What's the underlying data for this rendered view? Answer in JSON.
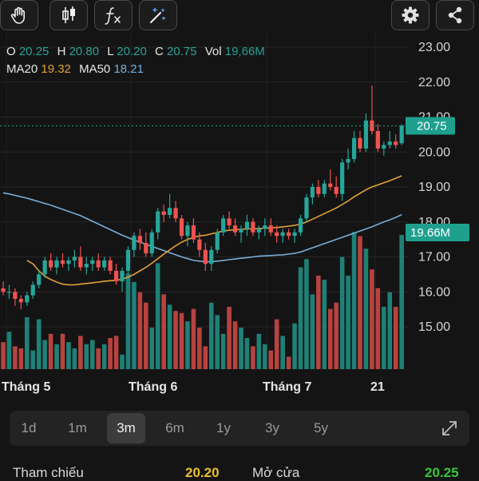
{
  "toolbar": {
    "left_icons": [
      "hand-icon",
      "candlestick-icon",
      "function-icon",
      "magic-wand-icon"
    ],
    "right_icons": [
      "gear-icon",
      "share-icon"
    ]
  },
  "ohlc": {
    "o_label": "O",
    "o": "20.25",
    "h_label": "H",
    "h": "20.80",
    "l_label": "L",
    "l": "20.20",
    "c_label": "C",
    "c": "20.75",
    "vol_label": "Vol",
    "vol": "19,66M",
    "ma20_label": "MA20",
    "ma20": "19.32",
    "ma50_label": "MA50",
    "ma50": "18.21"
  },
  "chart_data": {
    "type": "candlestick",
    "price_axis_ticks": [
      "23.00",
      "22.00",
      "21.00",
      "20.00",
      "19.00",
      "18.00",
      "17.00",
      "16.00",
      "15.00"
    ],
    "x_labels": [
      "Tháng 5",
      "Tháng 6",
      "Tháng 7",
      "21"
    ],
    "last_price_label": "20.75",
    "last_volume_label": "19.66M",
    "colors": {
      "up": "#26a69a",
      "down": "#ef5350",
      "ma20": "#e2a23a",
      "ma50": "#79aed8",
      "price_tag": "#1fa08f"
    },
    "candles": [
      [
        16.1,
        16.3,
        15.9,
        16.0
      ],
      [
        16.0,
        16.2,
        15.8,
        16.0
      ],
      [
        16.0,
        16.1,
        15.6,
        15.8
      ],
      [
        15.8,
        15.9,
        15.5,
        15.7
      ],
      [
        15.7,
        16.0,
        15.6,
        15.9
      ],
      [
        15.9,
        16.3,
        15.8,
        16.2
      ],
      [
        16.2,
        16.6,
        16.1,
        16.5
      ],
      [
        16.5,
        17.0,
        16.4,
        16.9
      ],
      [
        16.9,
        17.1,
        16.6,
        16.7
      ],
      [
        16.7,
        17.0,
        16.5,
        16.9
      ],
      [
        16.9,
        17.1,
        16.7,
        16.8
      ],
      [
        16.8,
        17.0,
        16.6,
        16.9
      ],
      [
        16.9,
        17.2,
        16.7,
        17.0
      ],
      [
        17.0,
        17.3,
        16.6,
        16.7
      ],
      [
        16.7,
        17.0,
        16.5,
        16.8
      ],
      [
        16.8,
        17.0,
        16.6,
        16.9
      ],
      [
        16.9,
        17.1,
        16.6,
        16.7
      ],
      [
        16.7,
        17.0,
        16.6,
        16.9
      ],
      [
        16.9,
        17.0,
        16.5,
        16.6
      ],
      [
        16.6,
        16.8,
        16.2,
        16.3
      ],
      [
        16.3,
        16.7,
        16.0,
        16.6
      ],
      [
        16.6,
        17.3,
        16.5,
        17.2
      ],
      [
        17.2,
        17.7,
        17.0,
        17.6
      ],
      [
        17.6,
        17.8,
        17.2,
        17.4
      ],
      [
        17.4,
        17.7,
        17.0,
        17.1
      ],
      [
        17.1,
        17.8,
        17.0,
        17.7
      ],
      [
        17.7,
        18.4,
        17.5,
        18.3
      ],
      [
        18.3,
        18.5,
        18.0,
        18.2
      ],
      [
        18.2,
        18.8,
        18.1,
        18.4
      ],
      [
        18.4,
        18.6,
        18.0,
        18.1
      ],
      [
        18.1,
        18.2,
        17.5,
        17.6
      ],
      [
        17.6,
        18.0,
        17.3,
        17.9
      ],
      [
        17.9,
        18.1,
        17.4,
        17.5
      ],
      [
        17.5,
        17.7,
        17.0,
        17.2
      ],
      [
        17.2,
        17.4,
        16.6,
        16.8
      ],
      [
        16.8,
        17.3,
        16.6,
        17.2
      ],
      [
        17.2,
        17.8,
        17.1,
        17.7
      ],
      [
        17.7,
        18.2,
        17.6,
        18.1
      ],
      [
        18.1,
        18.3,
        17.8,
        17.9
      ],
      [
        17.9,
        18.1,
        17.6,
        17.7
      ],
      [
        17.7,
        17.9,
        17.4,
        17.8
      ],
      [
        17.8,
        18.2,
        17.6,
        18.0
      ],
      [
        18.0,
        18.1,
        17.6,
        17.7
      ],
      [
        17.7,
        17.9,
        17.5,
        17.8
      ],
      [
        17.8,
        18.1,
        17.6,
        17.9
      ],
      [
        17.9,
        18.1,
        17.6,
        17.7
      ],
      [
        17.7,
        17.9,
        17.4,
        17.6
      ],
      [
        17.6,
        17.8,
        17.4,
        17.7
      ],
      [
        17.7,
        17.8,
        17.5,
        17.6
      ],
      [
        17.6,
        17.8,
        17.4,
        17.7
      ],
      [
        17.7,
        18.2,
        17.6,
        18.1
      ],
      [
        18.1,
        18.8,
        18.0,
        18.7
      ],
      [
        18.7,
        19.1,
        18.5,
        19.0
      ],
      [
        19.0,
        19.2,
        18.7,
        18.8
      ],
      [
        18.8,
        19.2,
        18.7,
        19.1
      ],
      [
        19.1,
        19.5,
        18.9,
        19.0
      ],
      [
        19.0,
        19.3,
        18.7,
        18.8
      ],
      [
        18.8,
        19.8,
        18.6,
        19.7
      ],
      [
        19.7,
        20.1,
        19.5,
        19.8
      ],
      [
        19.8,
        20.6,
        19.7,
        20.4
      ],
      [
        20.4,
        20.6,
        20.0,
        20.1
      ],
      [
        20.1,
        21.1,
        20.0,
        20.9
      ],
      [
        20.9,
        21.9,
        20.5,
        20.6
      ],
      [
        20.6,
        20.8,
        20.0,
        20.1
      ],
      [
        20.1,
        20.3,
        19.9,
        20.2
      ],
      [
        20.2,
        20.6,
        20.1,
        20.3
      ],
      [
        20.3,
        20.5,
        20.1,
        20.2
      ],
      [
        20.25,
        20.8,
        20.2,
        20.75
      ]
    ],
    "volumes": [
      14.5,
      15.0,
      14.3,
      14.2,
      15.7,
      14.1,
      15.6,
      14.6,
      14.9,
      14.4,
      14.9,
      14.5,
      14.2,
      14.8,
      14.4,
      14.6,
      14.2,
      14.4,
      14.7,
      14.8,
      13.9,
      17.8,
      17.4,
      16.9,
      16.4,
      15.2,
      18.3,
      16.8,
      16.3,
      16.0,
      15.9,
      15.5,
      16.1,
      15.2,
      14.3,
      16.4,
      15.8,
      14.9,
      16.2,
      15.5,
      15.2,
      14.7,
      14.3,
      14.9,
      14.4,
      14.1,
      15.6,
      14.8,
      13.8,
      15.4,
      18.1,
      18.5,
      16.8,
      17.7,
      17.5,
      16.1,
      16.4,
      18.6,
      17.7,
      19.8,
      19.6,
      19.0,
      18.0,
      17.1,
      16.2,
      16.9,
      16.2,
      19.66
    ],
    "ma20": [
      null,
      null,
      null,
      null,
      16.9,
      16.8,
      16.6,
      16.45,
      16.35,
      16.28,
      16.22,
      16.2,
      16.2,
      16.22,
      16.24,
      16.26,
      16.28,
      16.3,
      16.32,
      16.33,
      16.36,
      16.42,
      16.5,
      16.6,
      16.7,
      16.82,
      16.95,
      17.08,
      17.2,
      17.32,
      17.42,
      17.5,
      17.56,
      17.6,
      17.62,
      17.66,
      17.7,
      17.74,
      17.76,
      17.78,
      17.79,
      17.8,
      17.8,
      17.81,
      17.82,
      17.83,
      17.84,
      17.86,
      17.88,
      17.9,
      17.94,
      18.0,
      18.08,
      18.16,
      18.24,
      18.32,
      18.4,
      18.5,
      18.6,
      18.72,
      18.82,
      18.92,
      19.0,
      19.06,
      19.12,
      19.18,
      19.25,
      19.32
    ],
    "ma50": [
      18.83,
      18.8,
      18.76,
      18.72,
      18.68,
      18.63,
      18.58,
      18.53,
      18.48,
      18.42,
      18.36,
      18.3,
      18.24,
      18.18,
      18.1,
      18.02,
      17.94,
      17.86,
      17.78,
      17.7,
      17.62,
      17.55,
      17.48,
      17.42,
      17.36,
      17.3,
      17.24,
      17.18,
      17.12,
      17.06,
      17.0,
      16.95,
      16.9,
      16.88,
      16.86,
      16.86,
      16.88,
      16.9,
      16.92,
      16.94,
      16.96,
      16.98,
      17.0,
      17.02,
      17.03,
      17.04,
      17.05,
      17.06,
      17.08,
      17.1,
      17.14,
      17.2,
      17.26,
      17.32,
      17.38,
      17.44,
      17.5,
      17.56,
      17.62,
      17.68,
      17.74,
      17.8,
      17.86,
      17.93,
      18.0,
      18.06,
      18.13,
      18.21
    ],
    "price_range": [
      14.2,
      23.4
    ]
  },
  "ranges": {
    "items": [
      "1d",
      "1m",
      "3m",
      "6m",
      "1y",
      "3y",
      "5y"
    ],
    "active": "3m"
  },
  "stats": {
    "ref_label": "Tham chiếu",
    "ref_value": "20.20",
    "ref_color": "#e8c02a",
    "open_label": "Mở cửa",
    "open_value": "20.25",
    "open_color": "#3ac43a"
  }
}
